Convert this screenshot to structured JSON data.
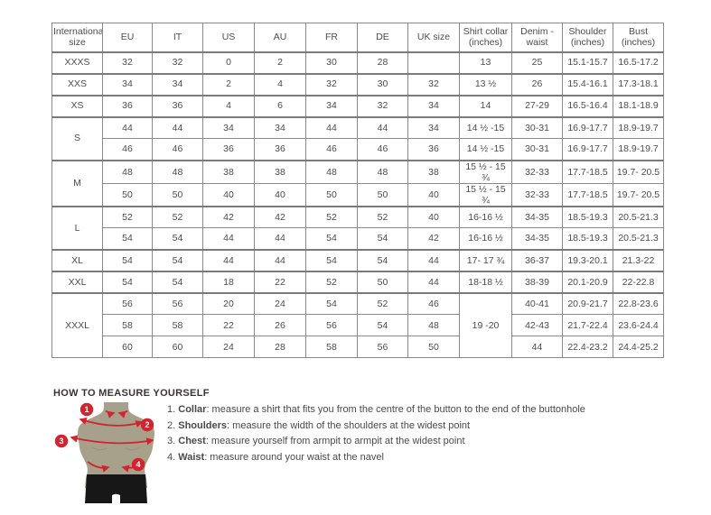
{
  "colors": {
    "accent_red": "#d2232e",
    "figure_torso": "#a7a08b",
    "figure_shorts": "#171717"
  },
  "size_table": {
    "headers": [
      "International size",
      "EU",
      "IT",
      "US",
      "AU",
      "FR",
      "DE",
      "UK size",
      "Shirt collar (inches)",
      "Denim - waist",
      "Shoulder (inches)",
      "Bust (inches)"
    ],
    "groups": [
      {
        "size": "XXXS",
        "rows": [
          [
            "32",
            "32",
            "0",
            "2",
            "30",
            "28",
            "",
            "13",
            "25",
            "15.1-15.7",
            "16.5-17.2"
          ]
        ]
      },
      {
        "size": "XXS",
        "rows": [
          [
            "34",
            "34",
            "2",
            "4",
            "32",
            "30",
            "32",
            "13 ½",
            "26",
            "15.4-16.1",
            "17.3-18.1"
          ]
        ]
      },
      {
        "size": "XS",
        "rows": [
          [
            "36",
            "36",
            "4",
            "6",
            "34",
            "32",
            "34",
            "14",
            "27-29",
            "16.5-16.4",
            "18.1-18.9"
          ]
        ]
      },
      {
        "size": "S",
        "rows": [
          [
            "44",
            "44",
            "34",
            "34",
            "44",
            "44",
            "34",
            "14 ½ -15",
            "30-31",
            "16.9-17.7",
            "18.9-19.7"
          ],
          [
            "46",
            "46",
            "36",
            "36",
            "46",
            "46",
            "36",
            "14 ½ -15",
            "30-31",
            "16.9-17.7",
            "18.9-19.7"
          ]
        ]
      },
      {
        "size": "M",
        "rows": [
          [
            "48",
            "48",
            "38",
            "38",
            "48",
            "48",
            "38",
            "15 ½ - 15 ¾",
            "32-33",
            "17.7-18.5",
            "19.7- 20.5"
          ],
          [
            "50",
            "50",
            "40",
            "40",
            "50",
            "50",
            "40",
            "15 ½ - 15 ¾",
            "32-33",
            "17.7-18.5",
            "19.7- 20.5"
          ]
        ]
      },
      {
        "size": "L",
        "rows": [
          [
            "52",
            "52",
            "42",
            "42",
            "52",
            "52",
            "40",
            "16-16 ½",
            "34-35",
            "18.5-19.3",
            "20.5-21.3"
          ],
          [
            "54",
            "54",
            "44",
            "44",
            "54",
            "54",
            "42",
            "16-16 ½",
            "34-35",
            "18.5-19.3",
            "20.5-21.3"
          ]
        ]
      },
      {
        "size": "XL",
        "rows": [
          [
            "54",
            "54",
            "44",
            "44",
            "54",
            "54",
            "44",
            "17- 17 ¾",
            "36-37",
            "19.3-20.1",
            "21.3-22"
          ]
        ]
      },
      {
        "size": "XXL",
        "rows": [
          [
            "54",
            "54",
            "18",
            "22",
            "52",
            "50",
            "44",
            "18-18 ½",
            "38-39",
            "20.1-20.9",
            "22-22.8"
          ]
        ]
      },
      {
        "size": "XXXL",
        "merged_collar": "19 -20",
        "rows": [
          [
            "56",
            "56",
            "20",
            "24",
            "54",
            "52",
            "46",
            null,
            "40-41",
            "20.9-21.7",
            "22.8-23.6"
          ],
          [
            "58",
            "58",
            "22",
            "26",
            "56",
            "54",
            "48",
            null,
            "42-43",
            "21.7-22.4",
            "23.6-24.4"
          ],
          [
            "60",
            "60",
            "24",
            "28",
            "58",
            "56",
            "50",
            null,
            "44",
            "22.4-23.2",
            "24.4-25.2"
          ]
        ]
      }
    ]
  },
  "measure_guide": {
    "title": "HOW TO MEASURE YOURSELF",
    "markers": [
      "1",
      "2",
      "3",
      "4"
    ],
    "steps": [
      {
        "num": "1.",
        "label": "Collar",
        "text": ": measure a shirt that fits you from the centre of the button to the end of the buttonhole"
      },
      {
        "num": "2.",
        "label": "Shoulders",
        "text": ": measure the width of the shoulders at the widest point"
      },
      {
        "num": "3.",
        "label": "Chest",
        "text": ": measure yourself from armpit to armpit at the widest point"
      },
      {
        "num": "4.",
        "label": "Waist",
        "text": ": measure around your waist at the navel"
      }
    ]
  }
}
